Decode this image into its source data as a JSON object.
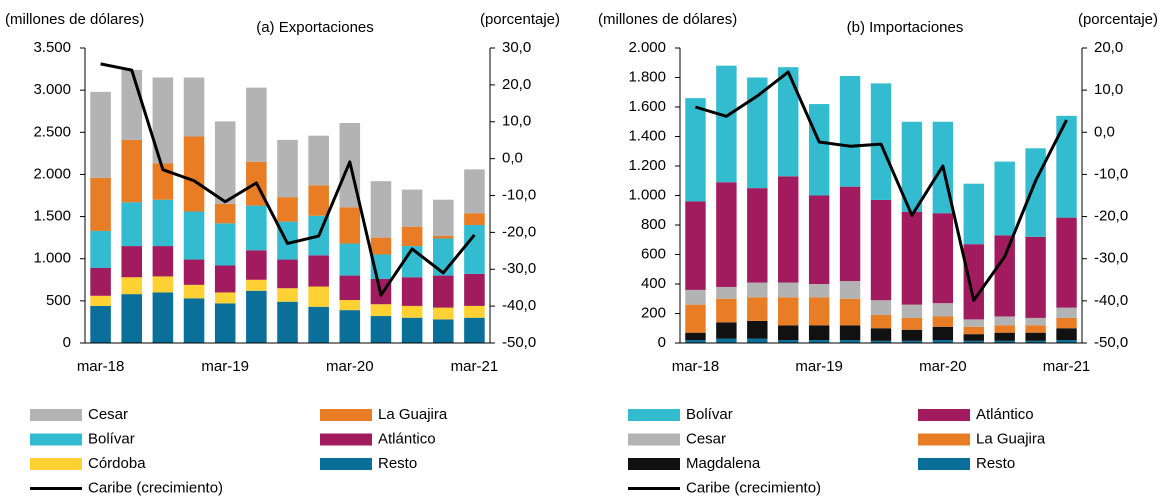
{
  "chart_data": [
    {
      "type": "bar",
      "stacked": true,
      "title": "(a) Exportaciones",
      "y_label": "(millones de dólares)",
      "y2_label": "(porcentaje)",
      "categories": [
        "mar-18",
        null,
        null,
        null,
        "mar-19",
        null,
        null,
        null,
        "mar-20",
        null,
        null,
        null,
        "mar-21"
      ],
      "ylim": [
        0,
        3500
      ],
      "yticks": [
        0,
        500,
        {
          "value": 1000,
          "label": "1.000"
        },
        {
          "value": 1500,
          "label": "1.500"
        },
        {
          "value": 2000,
          "label": "2.000"
        },
        {
          "value": 2500,
          "label": "2.500"
        },
        {
          "value": 3000,
          "label": "3.000"
        },
        {
          "value": 3500,
          "label": "3.500"
        }
      ],
      "y2lim": [
        -50,
        30
      ],
      "y2ticks": [
        {
          "value": -50,
          "label": "-50,0"
        },
        {
          "value": -40,
          "label": "-40,0"
        },
        {
          "value": -30,
          "label": "-30,0"
        },
        {
          "value": -20,
          "label": "-20,0"
        },
        {
          "value": -10,
          "label": "-10,0"
        },
        {
          "value": 0,
          "label": "0,0"
        },
        {
          "value": 10,
          "label": "10,0"
        },
        {
          "value": 20,
          "label": "20,0"
        },
        {
          "value": 30,
          "label": "30,0"
        }
      ],
      "series": [
        {
          "name": "Cesar",
          "color": "#b3b3b3",
          "values": [
            1020,
            830,
            1020,
            700,
            980,
            880,
            680,
            590,
            1000,
            670,
            440,
            430,
            520
          ]
        },
        {
          "name": "La Guajira",
          "color": "#e87d25",
          "values": [
            630,
            740,
            430,
            890,
            230,
            520,
            290,
            360,
            430,
            200,
            230,
            30,
            140
          ]
        },
        {
          "name": "Bolívar",
          "color": "#33bbcf",
          "values": [
            440,
            520,
            550,
            570,
            500,
            530,
            450,
            470,
            380,
            290,
            370,
            440,
            580
          ]
        },
        {
          "name": "Atlántico",
          "color": "#a11b5e",
          "values": [
            330,
            370,
            360,
            300,
            320,
            350,
            340,
            370,
            290,
            300,
            340,
            380,
            380
          ]
        },
        {
          "name": "Córdoba",
          "color": "#ffd133",
          "values": [
            120,
            200,
            190,
            160,
            130,
            130,
            160,
            240,
            120,
            140,
            140,
            140,
            140
          ]
        },
        {
          "name": "Resto",
          "color": "#0a7099",
          "values": [
            440,
            580,
            600,
            530,
            470,
            620,
            490,
            430,
            390,
            320,
            300,
            280,
            300
          ]
        },
        {
          "name": "Caribe (crecimiento)",
          "type": "line",
          "axis": "y2",
          "color": "#000000",
          "values": [
            25.7,
            24,
            -3,
            -6,
            -11.7,
            -6.6,
            -23,
            -21,
            -0.9,
            -37,
            -24.5,
            -31,
            -20.7
          ]
        }
      ]
    },
    {
      "type": "bar",
      "stacked": true,
      "title": "(b) Importaciones",
      "y_label": "(millones de dólares)",
      "y2_label": "(porcentaje)",
      "categories": [
        "mar-18",
        null,
        null,
        null,
        "mar-19",
        null,
        null,
        null,
        "mar-20",
        null,
        null,
        null,
        "mar-21"
      ],
      "ylim": [
        0,
        2000
      ],
      "yticks": [
        0,
        200,
        400,
        600,
        800,
        {
          "value": 1000,
          "label": "1.000"
        },
        {
          "value": 1200,
          "label": "1.200"
        },
        {
          "value": 1400,
          "label": "1.400"
        },
        {
          "value": 1600,
          "label": "1.600"
        },
        {
          "value": 1800,
          "label": "1.800"
        },
        {
          "value": 2000,
          "label": "2.000"
        }
      ],
      "y2lim": [
        -50,
        20
      ],
      "y2ticks": [
        {
          "value": -50,
          "label": "-50,0"
        },
        {
          "value": -40,
          "label": "-40,0"
        },
        {
          "value": -30,
          "label": "-30,0"
        },
        {
          "value": -20,
          "label": "-20,0"
        },
        {
          "value": -10,
          "label": "-10,0"
        },
        {
          "value": 0,
          "label": "0,0"
        },
        {
          "value": 10,
          "label": "10,0"
        },
        {
          "value": 20,
          "label": "20,0"
        }
      ],
      "series": [
        {
          "name": "Bolívar",
          "color": "#33bbcf",
          "values": [
            700,
            790,
            750,
            740,
            620,
            750,
            790,
            610,
            620,
            410,
            500,
            600,
            690
          ]
        },
        {
          "name": "Atlántico",
          "color": "#a11b5e",
          "values": [
            600,
            710,
            640,
            720,
            600,
            640,
            680,
            630,
            610,
            510,
            550,
            550,
            610
          ]
        },
        {
          "name": "Cesar",
          "color": "#b3b3b3",
          "values": [
            100,
            80,
            100,
            100,
            90,
            120,
            100,
            90,
            90,
            50,
            60,
            50,
            70
          ]
        },
        {
          "name": "La Guajira",
          "color": "#e87d25",
          "values": [
            190,
            160,
            160,
            190,
            190,
            180,
            90,
            80,
            70,
            50,
            50,
            50,
            70
          ]
        },
        {
          "name": "Magdalena",
          "color": "#111111",
          "values": [
            50,
            110,
            120,
            100,
            100,
            100,
            85,
            75,
            90,
            45,
            55,
            55,
            80
          ]
        },
        {
          "name": "Resto",
          "color": "#0a7099",
          "values": [
            20,
            30,
            30,
            20,
            20,
            20,
            15,
            15,
            20,
            15,
            15,
            15,
            20
          ]
        },
        {
          "name": "Caribe (crecimiento)",
          "type": "line",
          "axis": "y2",
          "color": "#000000",
          "values": [
            6,
            3.8,
            8.6,
            14.3,
            -2.3,
            -3.3,
            -2.8,
            -19.7,
            -8,
            -39.9,
            -29.5,
            -11.5,
            2.9
          ]
        }
      ]
    }
  ]
}
